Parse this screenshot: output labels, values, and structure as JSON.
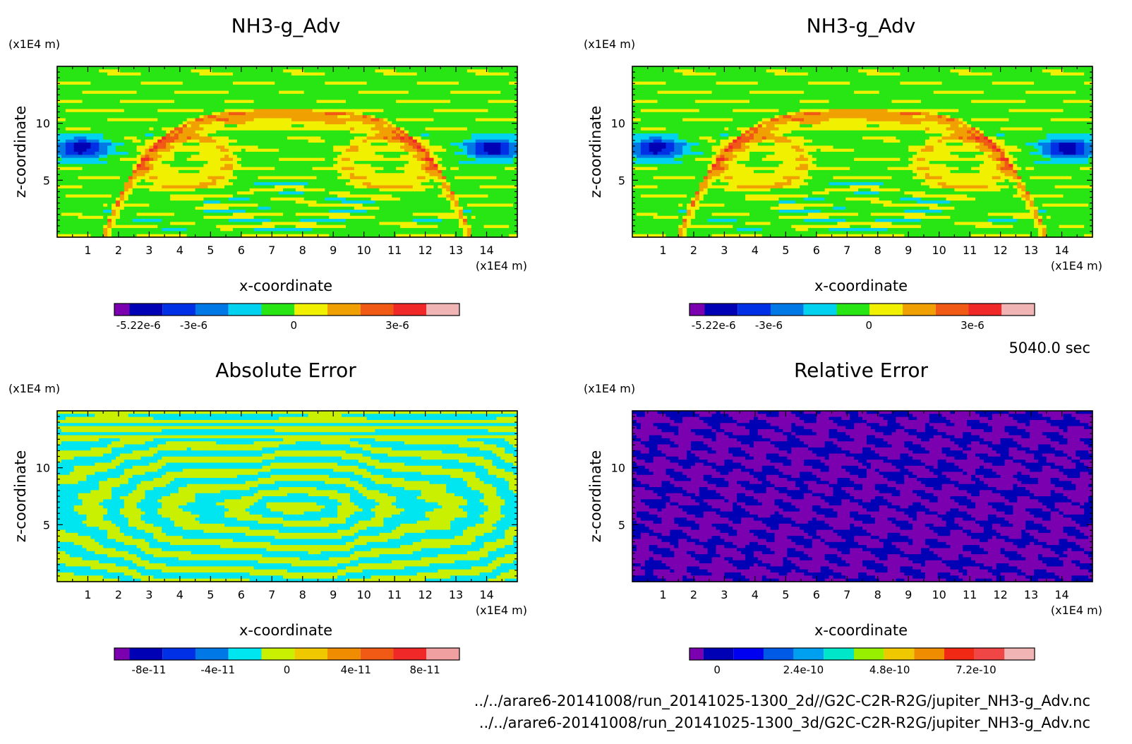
{
  "time_label": "5040.0 sec",
  "files": [
    "../../arare6-20141008/run_20141025-1300_2d//G2C-C2R-R2G/jupiter_NH3-g_Adv.nc",
    "../../arare6-20141008/run_20141025-1300_3d/G2C-C2R-R2G/jupiter_NH3-g_Adv.nc"
  ],
  "chart_data": [
    {
      "type": "heatmap",
      "title": "NH3-g_Adv",
      "xlabel": "x-coordinate",
      "ylabel": "z-coordinate",
      "x_unit": "(x1E4 m)",
      "y_unit": "(x1E4 m)",
      "xlim": [
        0,
        15
      ],
      "ylim": [
        0,
        15
      ],
      "x_ticks": [
        "1",
        "2",
        "3",
        "4",
        "5",
        "6",
        "7",
        "8",
        "9",
        "10",
        "11",
        "12",
        "13",
        "14"
      ],
      "y_ticks": [
        "5",
        "10"
      ],
      "colorbar": {
        "colors": [
          "#7a00b0",
          "#0000b4",
          "#0030e6",
          "#0078e6",
          "#00d2f0",
          "#28e614",
          "#f0f000",
          "#f0a000",
          "#f05a14",
          "#f02828",
          "#f0b4b4"
        ],
        "labels": [
          "-5.22e-6",
          "-3e-6",
          "0",
          "3e-6"
        ]
      },
      "field": "nh3"
    },
    {
      "type": "heatmap",
      "title": "NH3-g_Adv",
      "xlabel": "x-coordinate",
      "ylabel": "z-coordinate",
      "x_unit": "(x1E4 m)",
      "y_unit": "(x1E4 m)",
      "xlim": [
        0,
        15
      ],
      "ylim": [
        0,
        15
      ],
      "x_ticks": [
        "1",
        "2",
        "3",
        "4",
        "5",
        "6",
        "7",
        "8",
        "9",
        "10",
        "11",
        "12",
        "13",
        "14"
      ],
      "y_ticks": [
        "5",
        "10"
      ],
      "colorbar": {
        "colors": [
          "#7a00b0",
          "#0000b4",
          "#0030e6",
          "#0078e6",
          "#00d2f0",
          "#28e614",
          "#f0f000",
          "#f0a000",
          "#f05a14",
          "#f02828",
          "#f0b4b4"
        ],
        "labels": [
          "-5.22e-6",
          "-3e-6",
          "0",
          "3e-6"
        ]
      },
      "field": "nh3"
    },
    {
      "type": "heatmap",
      "title": "Absolute Error",
      "xlabel": "x-coordinate",
      "ylabel": "z-coordinate",
      "x_unit": "(x1E4 m)",
      "y_unit": "(x1E4 m)",
      "xlim": [
        0,
        15
      ],
      "ylim": [
        0,
        15
      ],
      "x_ticks": [
        "1",
        "2",
        "3",
        "4",
        "5",
        "6",
        "7",
        "8",
        "9",
        "10",
        "11",
        "12",
        "13",
        "14"
      ],
      "y_ticks": [
        "5",
        "10"
      ],
      "colorbar": {
        "colors": [
          "#7a00b0",
          "#0000b4",
          "#0030e6",
          "#0078e6",
          "#00e6f0",
          "#c8f000",
          "#f0c800",
          "#f08c00",
          "#f05a14",
          "#f02828",
          "#f0a0a0"
        ],
        "labels": [
          "-8e-11",
          "-4e-11",
          "0",
          "4e-11",
          "8e-11"
        ]
      },
      "field": "abs"
    },
    {
      "type": "heatmap",
      "title": "Relative Error",
      "xlabel": "x-coordinate",
      "ylabel": "z-coordinate",
      "x_unit": "(x1E4 m)",
      "y_unit": "(x1E4 m)",
      "xlim": [
        0,
        15
      ],
      "ylim": [
        0,
        15
      ],
      "x_ticks": [
        "1",
        "2",
        "3",
        "4",
        "5",
        "6",
        "7",
        "8",
        "9",
        "10",
        "11",
        "12",
        "13",
        "14"
      ],
      "y_ticks": [
        "5",
        "10"
      ],
      "colorbar": {
        "colors": [
          "#7a00b0",
          "#0000b4",
          "#0000f0",
          "#005ae6",
          "#00a0f0",
          "#00e6c8",
          "#96f000",
          "#f0c800",
          "#f08c00",
          "#f02814",
          "#f04646",
          "#f0b4b4"
        ],
        "labels": [
          "0",
          "2.4e-10",
          "4.8e-10",
          "7.2e-10"
        ]
      },
      "field": "rel"
    }
  ]
}
